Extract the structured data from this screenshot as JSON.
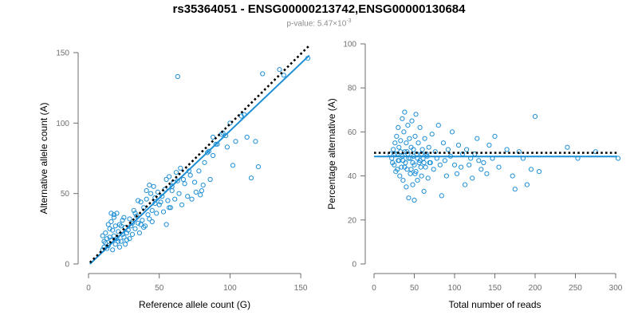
{
  "header": {
    "title": "rs35364051 - ENSG00000213742,ENSG00000130684",
    "pvalue_prefix": "p-value: 5.47×10",
    "pvalue_exp": "-3"
  },
  "colors": {
    "points": "#1f8fd6",
    "fit": "#1f8fd6",
    "reference": "#000000",
    "axis": "#6e6e6e"
  },
  "chart_data": [
    {
      "type": "scatter",
      "name": "left",
      "xlabel": "Reference allele count (G)",
      "ylabel": "Alternative allele count (A)",
      "xlim": [
        0,
        155
      ],
      "ylim": [
        0,
        150
      ],
      "xticks": [
        0,
        50,
        100,
        150
      ],
      "yticks": [
        0,
        50,
        100,
        150
      ],
      "fit_line": [
        [
          1,
          0
        ],
        [
          156,
          148
        ]
      ],
      "reference_line": [
        [
          1,
          1
        ],
        [
          156,
          155
        ]
      ],
      "points": [
        [
          10,
          10
        ],
        [
          11,
          12
        ],
        [
          12,
          15
        ],
        [
          13,
          18
        ],
        [
          10,
          20
        ],
        [
          12,
          22
        ],
        [
          15,
          25
        ],
        [
          14,
          13
        ],
        [
          16,
          17
        ],
        [
          18,
          20
        ],
        [
          17,
          10
        ],
        [
          19,
          14
        ],
        [
          20,
          18
        ],
        [
          21,
          23
        ],
        [
          22,
          12
        ],
        [
          23,
          16
        ],
        [
          24,
          21
        ],
        [
          25,
          19
        ],
        [
          26,
          14
        ],
        [
          27,
          22
        ],
        [
          11,
          16
        ],
        [
          13,
          11
        ],
        [
          15,
          19
        ],
        [
          17,
          24
        ],
        [
          19,
          27
        ],
        [
          16,
          30
        ],
        [
          18,
          33
        ],
        [
          20,
          36
        ],
        [
          22,
          28
        ],
        [
          24,
          31
        ],
        [
          26,
          26
        ],
        [
          28,
          24
        ],
        [
          30,
          27
        ],
        [
          29,
          32
        ],
        [
          31,
          21
        ],
        [
          33,
          25
        ],
        [
          35,
          29
        ],
        [
          34,
          34
        ],
        [
          32,
          38
        ],
        [
          36,
          22
        ],
        [
          38,
          31
        ],
        [
          40,
          27
        ],
        [
          42,
          35
        ],
        [
          37,
          44
        ],
        [
          39,
          40
        ],
        [
          41,
          46
        ],
        [
          43,
          32
        ],
        [
          45,
          38
        ],
        [
          47,
          43
        ],
        [
          44,
          50
        ],
        [
          46,
          55
        ],
        [
          48,
          36
        ],
        [
          50,
          42
        ],
        [
          52,
          48
        ],
        [
          54,
          53
        ],
        [
          56,
          45
        ],
        [
          58,
          40
        ],
        [
          55,
          60
        ],
        [
          57,
          62
        ],
        [
          59,
          52
        ],
        [
          60,
          58
        ],
        [
          62,
          65
        ],
        [
          64,
          50
        ],
        [
          65,
          68
        ],
        [
          63,
          133
        ],
        [
          67,
          60
        ],
        [
          70,
          48
        ],
        [
          72,
          63
        ],
        [
          75,
          58
        ],
        [
          78,
          66
        ],
        [
          80,
          52
        ],
        [
          82,
          72
        ],
        [
          85,
          80
        ],
        [
          88,
          77
        ],
        [
          90,
          85
        ],
        [
          95,
          93
        ],
        [
          98,
          83
        ],
        [
          100,
          100
        ],
        [
          102,
          70
        ],
        [
          108,
          105
        ],
        [
          112,
          90
        ],
        [
          115,
          61
        ],
        [
          118,
          87
        ],
        [
          120,
          69
        ],
        [
          123,
          135
        ],
        [
          135,
          138
        ],
        [
          138,
          134
        ],
        [
          155,
          146
        ],
        [
          14,
          28
        ],
        [
          16,
          36
        ],
        [
          18,
          35
        ],
        [
          21,
          16
        ],
        [
          23,
          27
        ],
        [
          25,
          33
        ],
        [
          27,
          17
        ],
        [
          29,
          18
        ],
        [
          31,
          29
        ],
        [
          33,
          36
        ],
        [
          35,
          45
        ],
        [
          37,
          28
        ],
        [
          39,
          26
        ],
        [
          41,
          52
        ],
        [
          43,
          56
        ],
        [
          45,
          30
        ],
        [
          47,
          47
        ],
        [
          49,
          51
        ],
        [
          51,
          44
        ],
        [
          53,
          37
        ],
        [
          55,
          28
        ],
        [
          57,
          40
        ],
        [
          59,
          55
        ],
        [
          61,
          46
        ],
        [
          63,
          59
        ],
        [
          66,
          42
        ],
        [
          68,
          57
        ],
        [
          71,
          66
        ],
        [
          73,
          46
        ],
        [
          76,
          51
        ],
        [
          79,
          49
        ],
        [
          81,
          56
        ],
        [
          84,
          79
        ],
        [
          86,
          60
        ],
        [
          88,
          90
        ],
        [
          91,
          85
        ],
        [
          94,
          92
        ],
        [
          97,
          91
        ],
        [
          104,
          87
        ],
        [
          110,
          106
        ]
      ]
    },
    {
      "type": "scatter",
      "name": "right",
      "xlabel": "Total number of reads",
      "ylabel": "Percentage alternative (A)",
      "xlim": [
        0,
        300
      ],
      "ylim": [
        0,
        100
      ],
      "xticks": [
        0,
        50,
        100,
        150,
        200,
        250,
        300
      ],
      "yticks": [
        0,
        20,
        40,
        60,
        80,
        100
      ],
      "fit_line": [
        [
          0,
          48.8
        ],
        [
          302,
          48.8
        ]
      ],
      "reference_line": [
        [
          0,
          50.5
        ],
        [
          302,
          50.5
        ]
      ],
      "points": [
        [
          20,
          50
        ],
        [
          22,
          48
        ],
        [
          24,
          52
        ],
        [
          25,
          45
        ],
        [
          26,
          55
        ],
        [
          27,
          42
        ],
        [
          28,
          58
        ],
        [
          29,
          50
        ],
        [
          30,
          47
        ],
        [
          30,
          62
        ],
        [
          31,
          53
        ],
        [
          32,
          40
        ],
        [
          33,
          56
        ],
        [
          34,
          44
        ],
        [
          35,
          66
        ],
        [
          35,
          49
        ],
        [
          36,
          38
        ],
        [
          37,
          60
        ],
        [
          38,
          51
        ],
        [
          38,
          69
        ],
        [
          39,
          46
        ],
        [
          40,
          35
        ],
        [
          40,
          55
        ],
        [
          41,
          43
        ],
        [
          42,
          63
        ],
        [
          42,
          50
        ],
        [
          43,
          30
        ],
        [
          44,
          57
        ],
        [
          45,
          48
        ],
        [
          45,
          41
        ],
        [
          46,
          53
        ],
        [
          47,
          65
        ],
        [
          48,
          36
        ],
        [
          48,
          46
        ],
        [
          49,
          52
        ],
        [
          50,
          45
        ],
        [
          50,
          29
        ],
        [
          51,
          58
        ],
        [
          52,
          42
        ],
        [
          52,
          68
        ],
        [
          53,
          50
        ],
        [
          54,
          38
        ],
        [
          55,
          55
        ],
        [
          56,
          46
        ],
        [
          57,
          62
        ],
        [
          58,
          44
        ],
        [
          59,
          40
        ],
        [
          60,
          52
        ],
        [
          61,
          48
        ],
        [
          62,
          33
        ],
        [
          63,
          57
        ],
        [
          64,
          44
        ],
        [
          65,
          50
        ],
        [
          67,
          39
        ],
        [
          68,
          53
        ],
        [
          70,
          46
        ],
        [
          72,
          59
        ],
        [
          74,
          43
        ],
        [
          76,
          51
        ],
        [
          78,
          48
        ],
        [
          80,
          63
        ],
        [
          82,
          45
        ],
        [
          84,
          31
        ],
        [
          86,
          55
        ],
        [
          88,
          47
        ],
        [
          90,
          40
        ],
        [
          92,
          52
        ],
        [
          95,
          49
        ],
        [
          97,
          60
        ],
        [
          100,
          45
        ],
        [
          103,
          41
        ],
        [
          105,
          54
        ],
        [
          108,
          44
        ],
        [
          110,
          50
        ],
        [
          113,
          36
        ],
        [
          115,
          52
        ],
        [
          118,
          45
        ],
        [
          120,
          48
        ],
        [
          122,
          39
        ],
        [
          125,
          50
        ],
        [
          128,
          57
        ],
        [
          130,
          47
        ],
        [
          133,
          43
        ],
        [
          136,
          46
        ],
        [
          140,
          41
        ],
        [
          143,
          54
        ],
        [
          147,
          48
        ],
        [
          150,
          58
        ],
        [
          155,
          44
        ],
        [
          165,
          52
        ],
        [
          172,
          40
        ],
        [
          175,
          34
        ],
        [
          180,
          51
        ],
        [
          185,
          48
        ],
        [
          190,
          36
        ],
        [
          195,
          43
        ],
        [
          200,
          67
        ],
        [
          205,
          42
        ],
        [
          240,
          53
        ],
        [
          253,
          48
        ],
        [
          275,
          51
        ],
        [
          303,
          48
        ],
        [
          23,
          46
        ],
        [
          26,
          50
        ],
        [
          29,
          43
        ],
        [
          31,
          47
        ],
        [
          33,
          51
        ],
        [
          36,
          47
        ],
        [
          38,
          44
        ],
        [
          41,
          51
        ],
        [
          43,
          48
        ],
        [
          46,
          43
        ],
        [
          49,
          49
        ],
        [
          51,
          41
        ],
        [
          54,
          48
        ],
        [
          57,
          47
        ],
        [
          59,
          50
        ],
        [
          62,
          46
        ],
        [
          66,
          49
        ],
        [
          69,
          46
        ]
      ]
    }
  ]
}
